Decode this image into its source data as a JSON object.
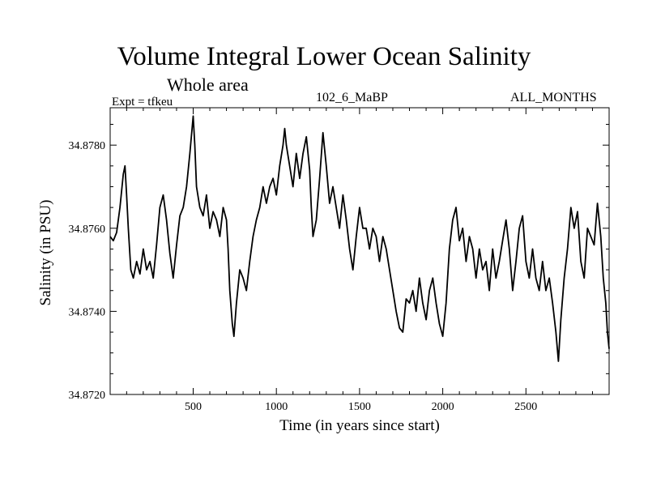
{
  "chart_data": {
    "type": "line",
    "title": "Volume Integral Lower Ocean Salinity",
    "subtitle": "Whole area",
    "annotations": {
      "left": "Expt = tfkeu",
      "center": "102_6_MaBP",
      "right": "ALL_MONTHS"
    },
    "xlabel": "Time (in years since start)",
    "ylabel": "Salinity (in PSU)",
    "xlim": [
      1,
      3000
    ],
    "ylim": [
      34.872,
      34.8789
    ],
    "x_ticks": [
      500,
      1000,
      1500,
      2000,
      2500
    ],
    "y_ticks": [
      34.872,
      34.874,
      34.876,
      34.878
    ],
    "y_tick_labels": [
      "34.8720",
      "34.8740",
      "34.8760",
      "34.8780"
    ],
    "grid": false,
    "legend": "none",
    "series": [
      {
        "color": "#000000",
        "points": [
          [
            1,
            34.8758
          ],
          [
            20,
            34.8757
          ],
          [
            40,
            34.8759
          ],
          [
            60,
            34.8765
          ],
          [
            80,
            34.8773
          ],
          [
            90,
            34.8775
          ],
          [
            100,
            34.8768
          ],
          [
            110,
            34.876
          ],
          [
            125,
            34.875
          ],
          [
            140,
            34.8748
          ],
          [
            160,
            34.8752
          ],
          [
            180,
            34.8749
          ],
          [
            200,
            34.8755
          ],
          [
            220,
            34.875
          ],
          [
            240,
            34.8752
          ],
          [
            260,
            34.8748
          ],
          [
            280,
            34.8756
          ],
          [
            300,
            34.8765
          ],
          [
            320,
            34.8768
          ],
          [
            340,
            34.8762
          ],
          [
            360,
            34.8754
          ],
          [
            380,
            34.8748
          ],
          [
            400,
            34.8756
          ],
          [
            420,
            34.8763
          ],
          [
            440,
            34.8765
          ],
          [
            460,
            34.877
          ],
          [
            480,
            34.8778
          ],
          [
            500,
            34.8787
          ],
          [
            510,
            34.878
          ],
          [
            520,
            34.877
          ],
          [
            540,
            34.8765
          ],
          [
            560,
            34.8763
          ],
          [
            580,
            34.8768
          ],
          [
            600,
            34.876
          ],
          [
            620,
            34.8764
          ],
          [
            640,
            34.8762
          ],
          [
            660,
            34.8758
          ],
          [
            680,
            34.8765
          ],
          [
            700,
            34.8762
          ],
          [
            710,
            34.8755
          ],
          [
            720,
            34.8745
          ],
          [
            735,
            34.8737
          ],
          [
            745,
            34.8734
          ],
          [
            760,
            34.8742
          ],
          [
            780,
            34.875
          ],
          [
            800,
            34.8748
          ],
          [
            820,
            34.8745
          ],
          [
            840,
            34.8752
          ],
          [
            860,
            34.8758
          ],
          [
            880,
            34.8762
          ],
          [
            900,
            34.8765
          ],
          [
            920,
            34.877
          ],
          [
            940,
            34.8766
          ],
          [
            960,
            34.877
          ],
          [
            980,
            34.8772
          ],
          [
            1000,
            34.8768
          ],
          [
            1020,
            34.8775
          ],
          [
            1040,
            34.878
          ],
          [
            1050,
            34.8784
          ],
          [
            1060,
            34.878
          ],
          [
            1080,
            34.8775
          ],
          [
            1100,
            34.877
          ],
          [
            1120,
            34.8778
          ],
          [
            1140,
            34.8772
          ],
          [
            1160,
            34.8778
          ],
          [
            1180,
            34.8782
          ],
          [
            1200,
            34.8774
          ],
          [
            1210,
            34.8765
          ],
          [
            1220,
            34.8758
          ],
          [
            1240,
            34.8762
          ],
          [
            1260,
            34.8772
          ],
          [
            1280,
            34.8783
          ],
          [
            1300,
            34.8775
          ],
          [
            1320,
            34.8766
          ],
          [
            1340,
            34.877
          ],
          [
            1360,
            34.8765
          ],
          [
            1380,
            34.876
          ],
          [
            1400,
            34.8768
          ],
          [
            1420,
            34.8762
          ],
          [
            1440,
            34.8755
          ],
          [
            1460,
            34.875
          ],
          [
            1480,
            34.8758
          ],
          [
            1500,
            34.8765
          ],
          [
            1520,
            34.876
          ],
          [
            1540,
            34.876
          ],
          [
            1560,
            34.8755
          ],
          [
            1580,
            34.876
          ],
          [
            1600,
            34.8758
          ],
          [
            1620,
            34.8752
          ],
          [
            1640,
            34.8758
          ],
          [
            1660,
            34.8755
          ],
          [
            1680,
            34.875
          ],
          [
            1700,
            34.8745
          ],
          [
            1720,
            34.874
          ],
          [
            1740,
            34.8736
          ],
          [
            1760,
            34.8735
          ],
          [
            1780,
            34.8743
          ],
          [
            1800,
            34.8742
          ],
          [
            1820,
            34.8745
          ],
          [
            1840,
            34.874
          ],
          [
            1860,
            34.8748
          ],
          [
            1880,
            34.8742
          ],
          [
            1900,
            34.8738
          ],
          [
            1920,
            34.8745
          ],
          [
            1940,
            34.8748
          ],
          [
            1960,
            34.8742
          ],
          [
            1980,
            34.8737
          ],
          [
            2000,
            34.8734
          ],
          [
            2020,
            34.8742
          ],
          [
            2040,
            34.8755
          ],
          [
            2060,
            34.8762
          ],
          [
            2080,
            34.8765
          ],
          [
            2100,
            34.8757
          ],
          [
            2120,
            34.876
          ],
          [
            2140,
            34.8752
          ],
          [
            2160,
            34.8758
          ],
          [
            2180,
            34.8755
          ],
          [
            2200,
            34.8748
          ],
          [
            2220,
            34.8755
          ],
          [
            2240,
            34.875
          ],
          [
            2260,
            34.8752
          ],
          [
            2280,
            34.8745
          ],
          [
            2300,
            34.8755
          ],
          [
            2320,
            34.8748
          ],
          [
            2340,
            34.8752
          ],
          [
            2360,
            34.8757
          ],
          [
            2380,
            34.8762
          ],
          [
            2400,
            34.8755
          ],
          [
            2420,
            34.8745
          ],
          [
            2440,
            34.8752
          ],
          [
            2460,
            34.876
          ],
          [
            2480,
            34.8763
          ],
          [
            2500,
            34.8752
          ],
          [
            2520,
            34.8748
          ],
          [
            2540,
            34.8755
          ],
          [
            2560,
            34.8748
          ],
          [
            2580,
            34.8745
          ],
          [
            2600,
            34.8752
          ],
          [
            2620,
            34.8745
          ],
          [
            2640,
            34.8748
          ],
          [
            2660,
            34.8742
          ],
          [
            2680,
            34.8735
          ],
          [
            2695,
            34.8728
          ],
          [
            2710,
            34.8738
          ],
          [
            2730,
            34.8748
          ],
          [
            2750,
            34.8755
          ],
          [
            2770,
            34.8765
          ],
          [
            2790,
            34.876
          ],
          [
            2810,
            34.8764
          ],
          [
            2830,
            34.8752
          ],
          [
            2850,
            34.8748
          ],
          [
            2870,
            34.876
          ],
          [
            2890,
            34.8758
          ],
          [
            2910,
            34.8756
          ],
          [
            2930,
            34.8766
          ],
          [
            2950,
            34.8758
          ],
          [
            2965,
            34.8748
          ],
          [
            2980,
            34.8742
          ],
          [
            2990,
            34.8735
          ],
          [
            3000,
            34.8731
          ]
        ]
      }
    ]
  }
}
